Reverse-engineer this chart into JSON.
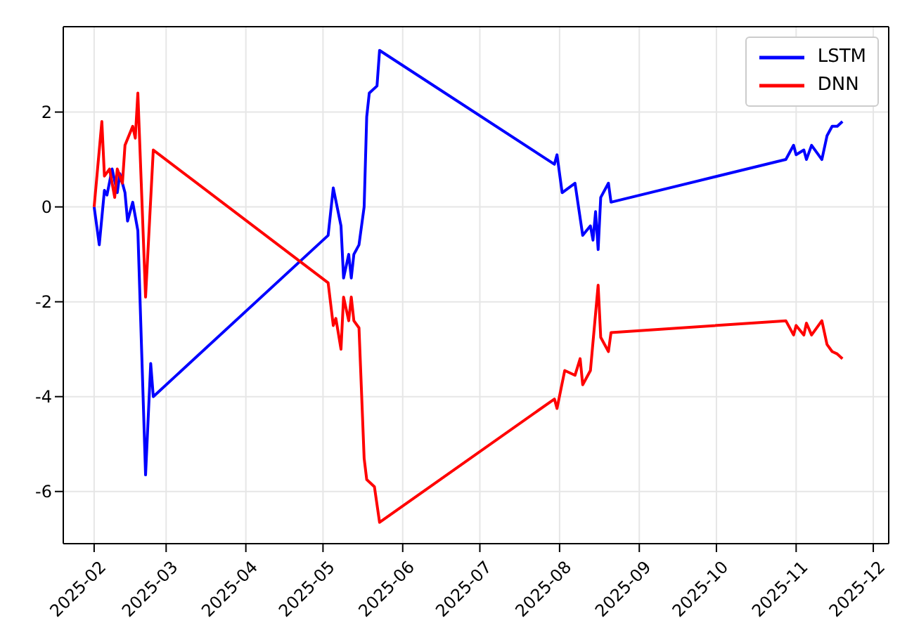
{
  "chart_data": {
    "type": "line",
    "series": [
      {
        "name": "LSTM",
        "color": "#0000ff",
        "x": [
          "2025-02-01",
          "2025-02-03",
          "2025-02-05",
          "2025-02-06",
          "2025-02-08",
          "2025-02-10",
          "2025-02-11",
          "2025-02-13",
          "2025-02-14",
          "2025-02-16",
          "2025-02-18",
          "2025-02-21",
          "2025-02-23",
          "2025-02-24",
          "2025-05-03",
          "2025-05-05",
          "2025-05-08",
          "2025-05-09",
          "2025-05-11",
          "2025-05-12",
          "2025-05-13",
          "2025-05-15",
          "2025-05-17",
          "2025-05-18",
          "2025-05-19",
          "2025-05-22",
          "2025-05-23",
          "2025-07-30",
          "2025-07-31",
          "2025-08-02",
          "2025-08-07",
          "2025-08-10",
          "2025-08-13",
          "2025-08-14",
          "2025-08-15",
          "2025-08-16",
          "2025-08-17",
          "2025-08-20",
          "2025-08-21",
          "2025-10-28",
          "2025-10-31",
          "2025-11-01",
          "2025-11-04",
          "2025-11-05",
          "2025-11-07",
          "2025-11-11",
          "2025-11-13",
          "2025-11-15",
          "2025-11-17",
          "2025-11-19"
        ],
        "values": [
          0,
          -0.8,
          0.35,
          0.25,
          0.8,
          0.3,
          0.7,
          0.3,
          -0.3,
          0.1,
          -0.5,
          -5.65,
          -3.3,
          -4.0,
          -0.6,
          0.4,
          -0.4,
          -1.5,
          -1.0,
          -1.5,
          -1.0,
          -0.8,
          0.0,
          1.9,
          2.4,
          2.55,
          3.3,
          0.9,
          1.1,
          0.3,
          0.5,
          -0.6,
          -0.4,
          -0.7,
          -0.1,
          -0.9,
          0.2,
          0.5,
          0.1,
          1.0,
          1.3,
          1.1,
          1.2,
          1.0,
          1.3,
          1.0,
          1.5,
          1.7,
          1.7,
          1.8
        ]
      },
      {
        "name": "DNN",
        "color": "#ff0000",
        "x": [
          "2025-02-01",
          "2025-02-04",
          "2025-02-05",
          "2025-02-07",
          "2025-02-09",
          "2025-02-10",
          "2025-02-12",
          "2025-02-13",
          "2025-02-16",
          "2025-02-17",
          "2025-02-18",
          "2025-02-21",
          "2025-02-24",
          "2025-05-03",
          "2025-05-05",
          "2025-05-06",
          "2025-05-08",
          "2025-05-09",
          "2025-05-11",
          "2025-05-12",
          "2025-05-13",
          "2025-05-15",
          "2025-05-17",
          "2025-05-18",
          "2025-05-21",
          "2025-05-23",
          "2025-07-30",
          "2025-07-31",
          "2025-08-03",
          "2025-08-07",
          "2025-08-09",
          "2025-08-10",
          "2025-08-13",
          "2025-08-16",
          "2025-08-17",
          "2025-08-20",
          "2025-08-21",
          "2025-10-28",
          "2025-10-31",
          "2025-11-01",
          "2025-11-04",
          "2025-11-05",
          "2025-11-07",
          "2025-11-11",
          "2025-11-13",
          "2025-11-15",
          "2025-11-17",
          "2025-11-19"
        ],
        "values": [
          0,
          1.8,
          0.65,
          0.8,
          0.2,
          0.8,
          0.5,
          1.3,
          1.7,
          1.45,
          2.4,
          -1.9,
          1.2,
          -1.6,
          -2.5,
          -2.35,
          -3.0,
          -1.9,
          -2.4,
          -1.9,
          -2.4,
          -2.55,
          -5.3,
          -5.75,
          -5.9,
          -6.65,
          -4.05,
          -4.25,
          -3.45,
          -3.55,
          -3.2,
          -3.75,
          -3.45,
          -1.65,
          -2.75,
          -3.05,
          -2.65,
          -2.4,
          -2.7,
          -2.5,
          -2.7,
          -2.45,
          -2.7,
          -2.4,
          -2.9,
          -3.05,
          -3.1,
          -3.2
        ]
      }
    ],
    "xlim": [
      "2025-01-20",
      "2025-12-07"
    ],
    "xticks": [
      {
        "value": "2025-02-01",
        "label": "2025-02"
      },
      {
        "value": "2025-03-01",
        "label": "2025-03"
      },
      {
        "value": "2025-04-01",
        "label": "2025-04"
      },
      {
        "value": "2025-05-01",
        "label": "2025-05"
      },
      {
        "value": "2025-06-01",
        "label": "2025-06"
      },
      {
        "value": "2025-07-01",
        "label": "2025-07"
      },
      {
        "value": "2025-08-01",
        "label": "2025-08"
      },
      {
        "value": "2025-09-01",
        "label": "2025-09"
      },
      {
        "value": "2025-10-01",
        "label": "2025-10"
      },
      {
        "value": "2025-11-01",
        "label": "2025-11"
      },
      {
        "value": "2025-12-01",
        "label": "2025-12"
      }
    ],
    "ylim": [
      -7.1,
      3.8
    ],
    "yticks": [
      -6,
      -4,
      -2,
      0,
      2
    ],
    "grid": true,
    "legend": "top right",
    "marker": "none",
    "line_style": "solid"
  }
}
